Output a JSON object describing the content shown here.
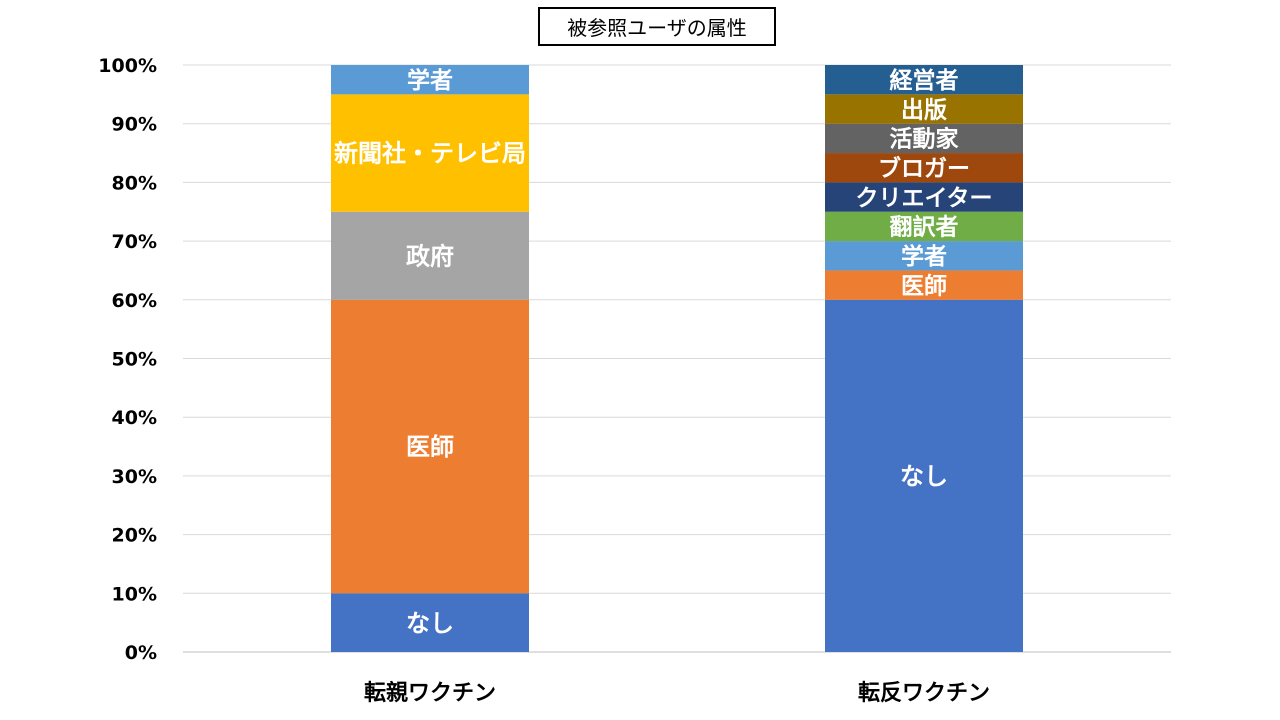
{
  "chart_data": {
    "type": "bar",
    "stacked": true,
    "title": "被参照ユーザの属性",
    "ylim": [
      0,
      100
    ],
    "y_ticks": [
      "0%",
      "10%",
      "20%",
      "30%",
      "40%",
      "50%",
      "60%",
      "70%",
      "80%",
      "90%",
      "100%"
    ],
    "y_tick_values": [
      0,
      10,
      20,
      30,
      40,
      50,
      60,
      70,
      80,
      90,
      100
    ],
    "grid": true,
    "categories": [
      "転親ワクチン",
      "転反ワクチン"
    ],
    "bars": [
      {
        "category": "転親ワクチン",
        "segments": [
          {
            "label": "なし",
            "value": 10,
            "color": "#4472C4"
          },
          {
            "label": "医師",
            "value": 50,
            "color": "#ED7D31"
          },
          {
            "label": "政府",
            "value": 15,
            "color": "#A5A5A5"
          },
          {
            "label": "新聞社・テレビ局",
            "value": 20,
            "color": "#FFC000"
          },
          {
            "label": "学者",
            "value": 5,
            "color": "#5B9BD5"
          }
        ]
      },
      {
        "category": "転反ワクチン",
        "segments": [
          {
            "label": "なし",
            "value": 60,
            "color": "#4472C4"
          },
          {
            "label": "医師",
            "value": 5,
            "color": "#ED7D31"
          },
          {
            "label": "学者",
            "value": 5,
            "color": "#5B9BD5"
          },
          {
            "label": "翻訳者",
            "value": 5,
            "color": "#70AD47"
          },
          {
            "label": "クリエイター",
            "value": 5,
            "color": "#264478"
          },
          {
            "label": "ブロガー",
            "value": 5,
            "color": "#9E480E"
          },
          {
            "label": "活動家",
            "value": 5,
            "color": "#636363"
          },
          {
            "label": "出版",
            "value": 5,
            "color": "#997300"
          },
          {
            "label": "経営者",
            "value": 5,
            "color": "#255E91"
          }
        ]
      }
    ]
  }
}
